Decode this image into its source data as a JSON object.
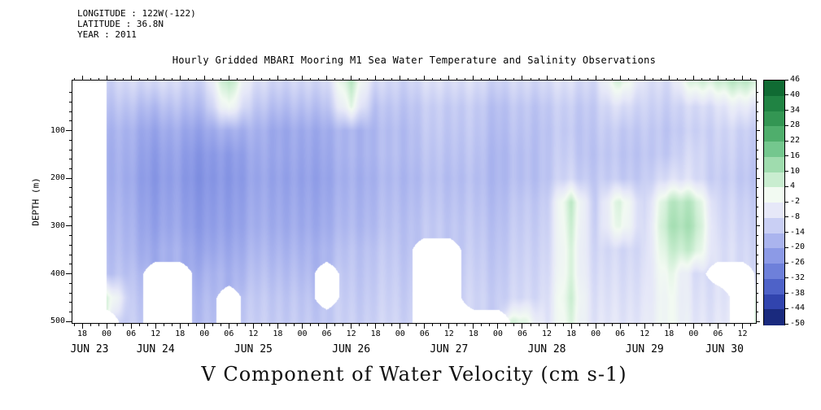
{
  "meta": {
    "longitude": "LONGITUDE : 122W(-122)",
    "latitude": "LATITUDE : 36.8N",
    "year": "YEAR : 2011"
  },
  "title": "Hourly Gridded MBARI Mooring M1 Sea Water Temperature and Salinity Observations",
  "ylabel": "DEPTH (m)",
  "caption": "V Component of Water Velocity (cm s-1)",
  "chart_data": {
    "type": "heatmap",
    "title": "Hourly Gridded MBARI Mooring M1 Sea Water Temperature and Salinity Observations",
    "caption": "V Component of Water Velocity (cm s-1)",
    "ylabel": "DEPTH (m)",
    "x_unit": "hours since JUN 23 2011 00:00",
    "t_range": [
      15.6,
      183.3
    ],
    "d_range": [
      -5,
      503
    ],
    "x_hours": [
      24,
      30,
      36,
      42,
      48,
      54,
      60,
      66,
      72,
      78,
      84,
      90,
      96,
      102,
      108,
      114,
      120,
      126,
      132,
      138,
      144,
      150,
      156,
      162,
      168,
      174,
      180,
      186
    ],
    "depths": [
      0,
      50,
      100,
      150,
      200,
      250,
      300,
      350,
      400,
      450,
      500
    ],
    "values": [
      [
        -10,
        -9,
        -8,
        -9,
        -10,
        10,
        -8,
        -9,
        -10,
        -8,
        8,
        -9,
        -10,
        -8,
        -7,
        -8,
        -10,
        -9,
        -8,
        -7,
        -9,
        6,
        -8,
        -7,
        4,
        6,
        8,
        6
      ],
      [
        -13,
        -14,
        -15,
        -14,
        -15,
        2,
        -13,
        -14,
        -15,
        -13,
        2,
        -14,
        -13,
        -12,
        -11,
        -12,
        -14,
        -13,
        -12,
        -11,
        -12,
        -6,
        -11,
        -10,
        -9,
        -6,
        -4,
        -6
      ],
      [
        -16,
        -18,
        -20,
        -19,
        -21,
        -17,
        -18,
        -19,
        -20,
        -18,
        -17,
        -16,
        -15,
        -13,
        -12,
        -13,
        -15,
        -14,
        -13,
        -12,
        -13,
        -11,
        -13,
        -12,
        -11,
        -9,
        -11,
        -10
      ],
      [
        -17,
        -19,
        -22,
        -21,
        -24,
        -22,
        -20,
        -19,
        -21,
        -19,
        -17,
        -16,
        -15,
        -14,
        -13,
        -14,
        -16,
        -15,
        -13,
        -11,
        -14,
        -12,
        -14,
        -11,
        -9,
        -10,
        -12,
        -11
      ],
      [
        -17,
        -20,
        -23,
        -22,
        -25,
        -23,
        -21,
        -20,
        -22,
        -20,
        -18,
        -17,
        -16,
        -15,
        -14,
        -15,
        -16,
        -15,
        -13,
        -9,
        -13,
        -11,
        -13,
        -6,
        -8,
        -11,
        -13,
        -12
      ],
      [
        -16,
        -19,
        -22,
        -21,
        -24,
        -22,
        -20,
        -19,
        -21,
        -19,
        -17,
        -16,
        -15,
        -14,
        -13,
        -14,
        -15,
        -13,
        -11,
        8,
        -12,
        6,
        -11,
        10,
        8,
        -9,
        -11,
        -10
      ],
      [
        -15,
        -18,
        -21,
        -20,
        -23,
        -21,
        -19,
        -18,
        -20,
        -18,
        -16,
        -15,
        -14,
        -13,
        -12,
        -13,
        -14,
        -12,
        -10,
        6,
        -11,
        4,
        -10,
        12,
        10,
        -8,
        -10,
        -9
      ],
      [
        -14,
        -17,
        -19,
        -18,
        -21,
        -19,
        -17,
        -16,
        -18,
        -16,
        -14,
        -13,
        -13,
        null,
        null,
        -12,
        -13,
        -11,
        -9,
        4,
        -10,
        -8,
        -9,
        8,
        6,
        -7,
        -9,
        -8
      ],
      [
        -13,
        -15,
        null,
        null,
        -18,
        -17,
        -15,
        -14,
        -16,
        null,
        -13,
        -12,
        -12,
        null,
        null,
        -11,
        -12,
        -10,
        -8,
        4,
        -9,
        -7,
        -8,
        4,
        -8,
        null,
        null,
        -7
      ],
      [
        6,
        -13,
        null,
        null,
        -16,
        null,
        -13,
        -12,
        -14,
        null,
        -12,
        -11,
        -11,
        null,
        null,
        -10,
        -11,
        -9,
        -7,
        6,
        -8,
        -6,
        -7,
        2,
        -7,
        -6,
        null,
        4
      ],
      [
        null,
        -12,
        null,
        null,
        -15,
        null,
        -12,
        -11,
        -13,
        -12,
        -11,
        -10,
        -10,
        null,
        null,
        null,
        null,
        4,
        -6,
        4,
        -7,
        -5,
        -6,
        2,
        -6,
        -5,
        null,
        6
      ]
    ],
    "x_ticks": [
      {
        "t": 18,
        "label": "18"
      },
      {
        "t": 24,
        "label": "00"
      },
      {
        "t": 30,
        "label": "06"
      },
      {
        "t": 36,
        "label": "12"
      },
      {
        "t": 42,
        "label": "18"
      },
      {
        "t": 48,
        "label": "00"
      },
      {
        "t": 54,
        "label": "06"
      },
      {
        "t": 60,
        "label": "12"
      },
      {
        "t": 66,
        "label": "18"
      },
      {
        "t": 72,
        "label": "00"
      },
      {
        "t": 78,
        "label": "06"
      },
      {
        "t": 84,
        "label": "12"
      },
      {
        "t": 90,
        "label": "18"
      },
      {
        "t": 96,
        "label": "00"
      },
      {
        "t": 102,
        "label": "06"
      },
      {
        "t": 108,
        "label": "12"
      },
      {
        "t": 114,
        "label": "18"
      },
      {
        "t": 120,
        "label": "00"
      },
      {
        "t": 126,
        "label": "06"
      },
      {
        "t": 132,
        "label": "12"
      },
      {
        "t": 138,
        "label": "18"
      },
      {
        "t": 144,
        "label": "00"
      },
      {
        "t": 150,
        "label": "06"
      },
      {
        "t": 156,
        "label": "12"
      },
      {
        "t": 162,
        "label": "18"
      },
      {
        "t": 168,
        "label": "00"
      },
      {
        "t": 174,
        "label": "06"
      },
      {
        "t": 180,
        "label": "12"
      }
    ],
    "x_minor_step_hours": 2,
    "date_ticks": [
      {
        "t": 19.8,
        "label": "JUN 23"
      },
      {
        "t": 36,
        "label": "JUN 24"
      },
      {
        "t": 60,
        "label": "JUN 25"
      },
      {
        "t": 84,
        "label": "JUN 26"
      },
      {
        "t": 108,
        "label": "JUN 27"
      },
      {
        "t": 132,
        "label": "JUN 28"
      },
      {
        "t": 156,
        "label": "JUN 29"
      },
      {
        "t": 175.6,
        "label": "JUN 30"
      }
    ],
    "y_ticks": [
      {
        "d": 100,
        "label": "100"
      },
      {
        "d": 200,
        "label": "200"
      },
      {
        "d": 300,
        "label": "300"
      },
      {
        "d": 400,
        "label": "400"
      },
      {
        "d": 500,
        "label": "500"
      }
    ],
    "y_minor_step_m": 20,
    "colorbar": {
      "levels": [
        46,
        40,
        34,
        28,
        22,
        16,
        10,
        4,
        -2,
        -8,
        -14,
        -20,
        -26,
        -32,
        -38,
        -44,
        -50
      ],
      "tick_labels": [
        "46",
        "40",
        "34",
        "28",
        "22",
        "16",
        "10",
        "4",
        "-2",
        "-8",
        "-14",
        "-20",
        "-26",
        "-32",
        "-38",
        "-44",
        "-50"
      ],
      "band_colors": [
        "#106b33",
        "#208343",
        "#339653",
        "#4fae6c",
        "#74c78e",
        "#9fdcae",
        "#c9edd0",
        "#f2faf2",
        "#e6e8f8",
        "#c9cff4",
        "#aab4ee",
        "#8c9ae6",
        "#6e80da",
        "#4e62c8",
        "#3144ae",
        "#1a2a7e"
      ],
      "missing_color": "#ffffff"
    }
  }
}
